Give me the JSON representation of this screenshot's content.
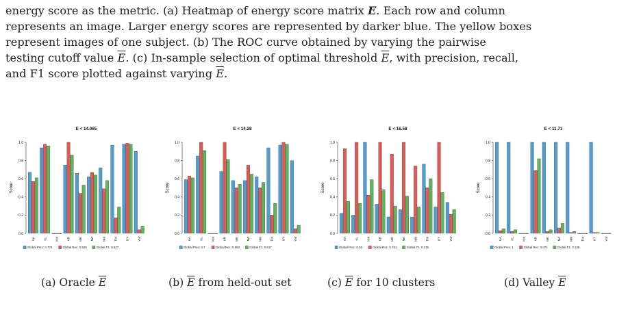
{
  "paragraph": {
    "line1_a": "energy score as the metric. (a) Heatmap of energy score matrix ",
    "line1_b": "E",
    "line1_c": ". Each row and column",
    "line2": "represents an image. Larger energy scores are represented by darker blue. The yellow boxes",
    "line3_a": "represent images of one subject. (b) The ROC curve obtained by varying the pairwise",
    "line4_a": "testing cutoff value ",
    "line4_b": "E",
    "line4_c": ". (c) In-sample selection of optimal threshold ",
    "line4_d": "E",
    "line4_e": ", with precision, recall,",
    "line5_a": "and F1 score plotted against varying ",
    "line5_b": "E",
    "line5_c": "."
  },
  "captions": [
    {
      "prefix": "(a) Oracle ",
      "sym": "E",
      "suffix": ""
    },
    {
      "prefix": "(b) ",
      "sym": "E",
      "suffix": " from held-out set"
    },
    {
      "prefix": "(c) ",
      "sym": "E",
      "suffix": " for 10 clusters"
    },
    {
      "prefix": "(d) Valley ",
      "sym": "E",
      "suffix": ""
    }
  ],
  "colors": {
    "precision": "#4f9fd3",
    "recall": "#e05a55",
    "f1": "#5db55d"
  },
  "chart_data": [
    {
      "type": "bar",
      "title": "E < 14.065",
      "ylabel": "Score",
      "ylim": [
        0,
        1
      ],
      "yticks": [
        "0.0",
        "0.2",
        "0.4",
        "0.6",
        "0.8",
        "1.0"
      ],
      "categories": [
        "KA",
        "KL",
        "KM",
        "KR",
        "MK",
        "NA",
        "NM",
        "TM",
        "UY",
        "YM"
      ],
      "series": [
        {
          "name": "Global Prec: 0.774",
          "values": [
            0.67,
            0.94,
            0,
            0.75,
            0.66,
            0.62,
            0.72,
            0.97,
            0.98,
            0.9
          ]
        },
        {
          "name": "Global Rec: 0.526",
          "values": [
            0.57,
            0.98,
            0,
            1.0,
            0.44,
            0.67,
            0.49,
            0.17,
            0.99,
            0.04
          ]
        },
        {
          "name": "Global F1: 0.627",
          "values": [
            0.61,
            0.96,
            0,
            0.86,
            0.53,
            0.64,
            0.58,
            0.29,
            0.98,
            0.08
          ]
        }
      ],
      "legend": "bottom"
    },
    {
      "type": "bar",
      "title": "E < 14.28",
      "ylabel": "Score",
      "ylim": [
        0,
        1
      ],
      "yticks": [
        "0.0",
        "0.2",
        "0.4",
        "0.6",
        "0.8",
        "1.0"
      ],
      "categories": [
        "KA",
        "KL",
        "KM",
        "KR",
        "MK",
        "NA",
        "NM",
        "TM",
        "UY",
        "YM"
      ],
      "series": [
        {
          "name": "Global Prec: 0.7",
          "values": [
            0.59,
            0.85,
            0,
            0.68,
            0.58,
            0.58,
            0.62,
            0.94,
            0.97,
            0.8
          ]
        },
        {
          "name": "Global Rec: 0.552",
          "values": [
            0.63,
            1.0,
            0,
            1.0,
            0.5,
            0.75,
            0.5,
            0.2,
            1.0,
            0.05
          ]
        },
        {
          "name": "Global F1: 0.617",
          "values": [
            0.61,
            0.91,
            0,
            0.81,
            0.54,
            0.65,
            0.56,
            0.33,
            0.98,
            0.09
          ]
        }
      ],
      "legend": "bottom"
    },
    {
      "type": "bar",
      "title": "E < 16.58",
      "ylabel": "Score",
      "ylim": [
        0,
        1
      ],
      "yticks": [
        "0.0",
        "0.2",
        "0.4",
        "0.6",
        "0.8",
        "1.0"
      ],
      "categories": [
        "KA",
        "KL",
        "KM",
        "KR",
        "MK",
        "NA",
        "NM",
        "TM",
        "UY",
        "YM"
      ],
      "series": [
        {
          "name": "Global Prec: 0.25",
          "values": [
            0.22,
            0.2,
            1.0,
            0.32,
            0.18,
            0.26,
            0.18,
            0.76,
            0.29,
            0.34
          ]
        },
        {
          "name": "Global Rec: 0.761",
          "values": [
            0.93,
            1.0,
            0.42,
            1.0,
            0.87,
            1.0,
            0.74,
            0.5,
            1.0,
            0.21
          ]
        },
        {
          "name": "Global F1: 0.376",
          "values": [
            0.35,
            0.33,
            0.59,
            0.48,
            0.3,
            0.41,
            0.29,
            0.6,
            0.45,
            0.26
          ]
        }
      ],
      "legend": "bottom"
    },
    {
      "type": "bar",
      "title": "E < 11.71",
      "ylabel": "Score",
      "ylim": [
        0,
        1
      ],
      "yticks": [
        "0.0",
        "0.2",
        "0.4",
        "0.6",
        "0.8",
        "1.0"
      ],
      "categories": [
        "KA",
        "KL",
        "KM",
        "KR",
        "MK",
        "NA",
        "NM",
        "TM",
        "UY",
        "YM"
      ],
      "series": [
        {
          "name": "Global Prec: 1",
          "values": [
            1.0,
            1.0,
            0,
            1.0,
            1.0,
            1.0,
            1.0,
            0,
            1.0,
            0
          ]
        },
        {
          "name": "Global Rec: 0.074",
          "values": [
            0.03,
            0.02,
            0,
            0.69,
            0.02,
            0.06,
            0.01,
            0,
            0.01,
            0
          ]
        },
        {
          "name": "Global F1: 0.138",
          "values": [
            0.05,
            0.04,
            0,
            0.82,
            0.04,
            0.11,
            0.02,
            0,
            0.01,
            0
          ]
        }
      ],
      "legend": "bottom"
    }
  ]
}
